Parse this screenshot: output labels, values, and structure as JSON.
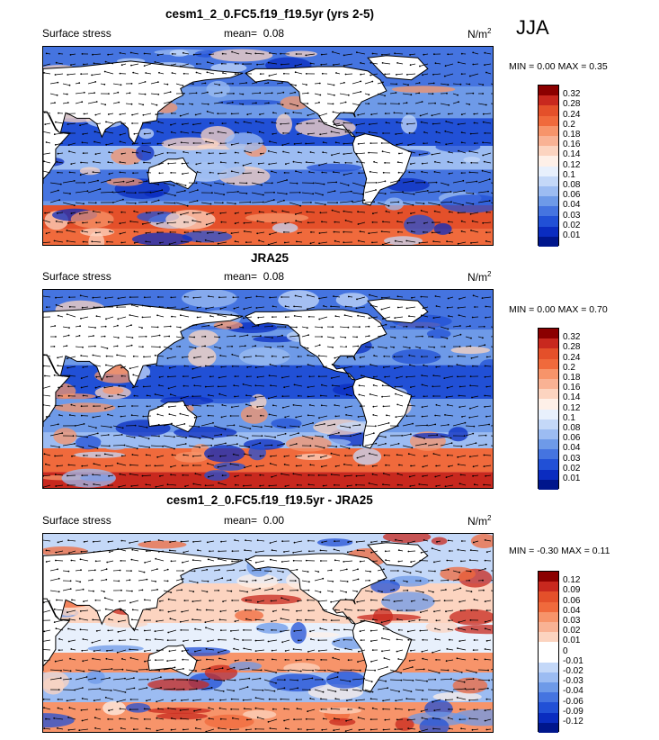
{
  "season": "JJA",
  "panels": [
    {
      "title": "cesm1_2_0.FC5.f19_f19.5yr (yrs 2-5)",
      "variable": "Surface stress",
      "mean_label": "mean=",
      "mean_value": "0.08",
      "units": "N/m",
      "units_exp": "2",
      "minmax": "MIN =  0.00 MAX =  0.35"
    },
    {
      "title": "JRA25",
      "variable": "Surface stress",
      "mean_label": "mean=",
      "mean_value": "0.08",
      "units": "N/m",
      "units_exp": "2",
      "minmax": "MIN =  0.00 MAX =  0.70"
    },
    {
      "title": "cesm1_2_0.FC5.f19_f19.5yr - JRA25",
      "variable": "Surface stress",
      "mean_label": "mean=",
      "mean_value": "0.00",
      "units": "N/m",
      "units_exp": "2",
      "minmax": "MIN = -0.30 MAX =  0.11"
    }
  ],
  "chart_data": [
    {
      "type": "heatmap",
      "title": "cesm1_2_0.FC5.f19_f19.5yr (yrs 2-5)",
      "variable": "Surface stress",
      "units": "N/m2",
      "mean": 0.08,
      "min": 0.0,
      "max": 0.35,
      "colorbar_levels": [
        0.32,
        0.28,
        0.24,
        0.2,
        0.18,
        0.16,
        0.14,
        0.12,
        0.1,
        0.08,
        0.06,
        0.04,
        0.03,
        0.02,
        0.01
      ],
      "colorbar_colors": [
        "#8b0000",
        "#c8281e",
        "#e4502a",
        "#f06a3c",
        "#f7946a",
        "#f9b294",
        "#fcd4c0",
        "#fef0e8",
        "#e8f0fc",
        "#c4d8f8",
        "#9cbcf2",
        "#6e9ae8",
        "#4574e0",
        "#2150d6",
        "#0a2cc0",
        "#00168c"
      ]
    },
    {
      "type": "heatmap",
      "title": "JRA25",
      "variable": "Surface stress",
      "units": "N/m2",
      "mean": 0.08,
      "min": 0.0,
      "max": 0.7,
      "colorbar_levels": [
        0.32,
        0.28,
        0.24,
        0.2,
        0.18,
        0.16,
        0.14,
        0.12,
        0.1,
        0.08,
        0.06,
        0.04,
        0.03,
        0.02,
        0.01
      ],
      "colorbar_colors": [
        "#8b0000",
        "#c8281e",
        "#e4502a",
        "#f06a3c",
        "#f7946a",
        "#f9b294",
        "#fcd4c0",
        "#fef0e8",
        "#e8f0fc",
        "#c4d8f8",
        "#9cbcf2",
        "#6e9ae8",
        "#4574e0",
        "#2150d6",
        "#0a2cc0",
        "#00168c"
      ]
    },
    {
      "type": "heatmap",
      "title": "cesm1_2_0.FC5.f19_f19.5yr - JRA25",
      "variable": "Surface stress",
      "units": "N/m2",
      "mean": 0.0,
      "min": -0.3,
      "max": 0.11,
      "colorbar_levels": [
        0.12,
        0.09,
        0.06,
        0.04,
        0.03,
        0.02,
        0.01,
        0,
        -0.01,
        -0.02,
        -0.03,
        -0.04,
        -0.06,
        -0.09,
        -0.12
      ],
      "colorbar_colors": [
        "#8b0000",
        "#c8281e",
        "#e4502a",
        "#f06a3c",
        "#f7946a",
        "#f9b294",
        "#fcd4c0",
        "#ffffff",
        "#ffffff",
        "#c4d8f8",
        "#9cbcf2",
        "#6e9ae8",
        "#4574e0",
        "#2150d6",
        "#0a2cc0",
        "#00168c"
      ]
    }
  ]
}
